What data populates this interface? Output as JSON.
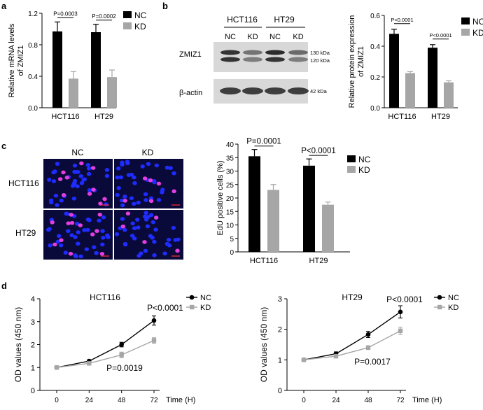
{
  "colors": {
    "nc": "#000000",
    "kd": "#a6a6a6",
    "blot_bg": "#d8d8d8",
    "band": "#222222",
    "micro_bg": "#0a0a3a",
    "nucleus": "#1f2cff",
    "edu": "#e43ee0"
  },
  "panel_a": {
    "letter": "a",
    "ylabel_line1": "Relative mRNA levels",
    "ylabel_line2": "of ZMIZ1",
    "chart_data": {
      "type": "bar",
      "categories": [
        "HCT116",
        "HT29"
      ],
      "series": [
        {
          "name": "NC",
          "values": [
            0.97,
            0.96
          ],
          "errors": [
            0.12,
            0.1
          ]
        },
        {
          "name": "KD",
          "values": [
            0.37,
            0.39
          ],
          "errors": [
            0.09,
            0.09
          ]
        }
      ],
      "ylim": [
        0,
        1.2
      ],
      "yticks": [
        "0.0",
        "0.4",
        "0.8",
        "1.2"
      ],
      "pvalues": [
        "P=0.0003",
        "P=0.0002"
      ]
    }
  },
  "panel_b": {
    "letter": "b",
    "lanes_group": [
      "HCT116",
      "HT29"
    ],
    "lanes": [
      "NC",
      "KD",
      "NC",
      "KD"
    ],
    "row_labels": [
      "ZMIZ1",
      "β-actin"
    ],
    "kda": [
      "130 kDa",
      "120 kDa",
      "42 kDa"
    ],
    "ylabel_line1": "Relative protein expression",
    "ylabel_line2": "of ZMIZ1",
    "chart_data": {
      "type": "bar",
      "categories": [
        "HCT116",
        "HT29"
      ],
      "series": [
        {
          "name": "NC",
          "values": [
            0.48,
            0.39
          ],
          "errors": [
            0.03,
            0.02
          ]
        },
        {
          "name": "KD",
          "values": [
            0.225,
            0.165
          ],
          "errors": [
            0.01,
            0.01
          ]
        }
      ],
      "ylim": [
        0,
        0.6
      ],
      "yticks": [
        "0.0",
        "0.2",
        "0.4",
        "0.6"
      ],
      "pvalues": [
        "P<0.0001",
        "P<0.0001"
      ]
    }
  },
  "panel_c": {
    "letter": "c",
    "col_labels": [
      "NC",
      "KD"
    ],
    "row_labels": [
      "HCT116",
      "HT29"
    ],
    "ylabel": "EdU positive cells (%)",
    "chart_data": {
      "type": "bar",
      "categories": [
        "HCT116",
        "HT29"
      ],
      "series": [
        {
          "name": "NC",
          "values": [
            35.5,
            32
          ],
          "errors": [
            2.5,
            2.5
          ]
        },
        {
          "name": "KD",
          "values": [
            23,
            17.5
          ],
          "errors": [
            2,
            1
          ]
        }
      ],
      "ylim": [
        0,
        40
      ],
      "yticks": [
        "0",
        "5",
        "10",
        "15",
        "20",
        "25",
        "30",
        "35",
        "40"
      ],
      "pvalues": [
        "P=0.0001",
        "P<0.0001"
      ]
    }
  },
  "panel_d": {
    "letter": "d",
    "ylabel": "OD values (450 nm)",
    "xlabel": "Time (H)",
    "chart_data": [
      {
        "type": "line",
        "title": "HCT116",
        "x": [
          0,
          24,
          48,
          72
        ],
        "series": [
          {
            "name": "NC",
            "values": [
              1.0,
              1.28,
              2.0,
              3.05
            ],
            "errors": [
              0.03,
              0.06,
              0.1,
              0.2
            ]
          },
          {
            "name": "KD",
            "values": [
              1.0,
              1.18,
              1.55,
              2.18
            ],
            "errors": [
              0.03,
              0.05,
              0.12,
              0.12
            ]
          }
        ],
        "ylim": [
          0,
          4
        ],
        "yticks": [
          "0",
          "1",
          "2",
          "3",
          "4"
        ],
        "xticks": [
          "0",
          "24",
          "48",
          "72"
        ],
        "pvalues": [
          "P<0.0001",
          "P=0.0019"
        ]
      },
      {
        "type": "line",
        "title": "HT29",
        "x": [
          0,
          24,
          48,
          72
        ],
        "series": [
          {
            "name": "NC",
            "values": [
              1.0,
              1.2,
              1.83,
              2.57
            ],
            "errors": [
              0.03,
              0.06,
              0.1,
              0.2
            ]
          },
          {
            "name": "KD",
            "values": [
              1.0,
              1.12,
              1.4,
              1.95
            ],
            "errors": [
              0.03,
              0.05,
              0.06,
              0.12
            ]
          }
        ],
        "ylim": [
          0,
          3
        ],
        "yticks": [
          "0",
          "1",
          "2",
          "3"
        ],
        "xticks": [
          "0",
          "24",
          "48",
          "72"
        ],
        "pvalues": [
          "P<0.0001",
          "P=0.0017"
        ]
      }
    ]
  }
}
